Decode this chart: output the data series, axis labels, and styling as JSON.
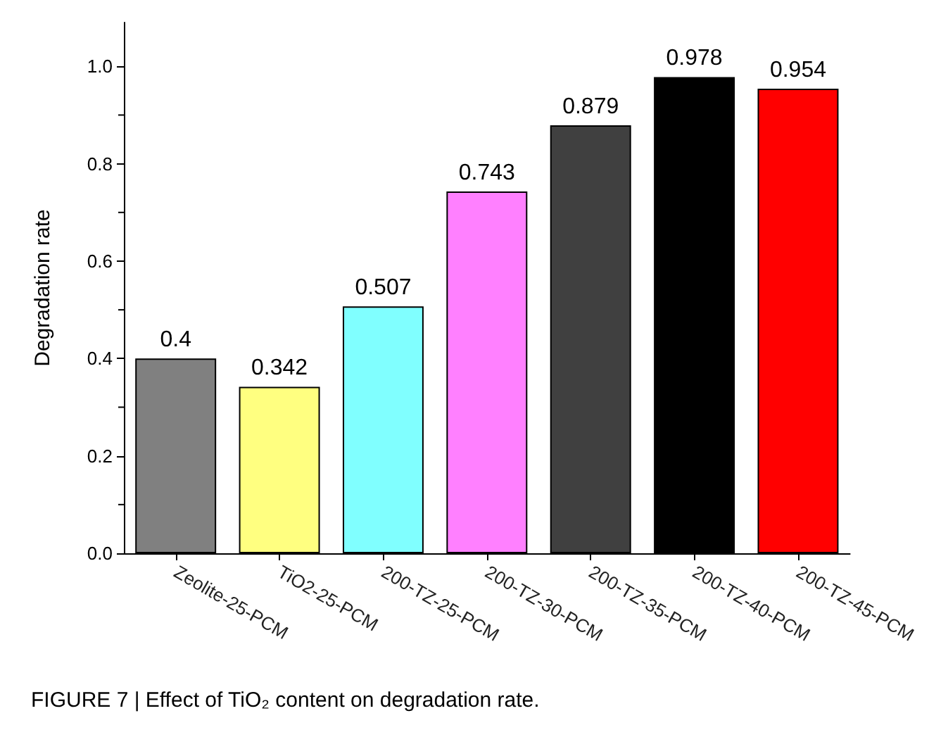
{
  "chart_data": {
    "type": "bar",
    "ylabel": "Degradation rate",
    "categories": [
      "Zeolite-25-PCM",
      "TiO2-25-PCM",
      "200-TZ-25-PCM",
      "200-TZ-30-PCM",
      "200-TZ-35-PCM",
      "200-TZ-40-PCM",
      "200-TZ-45-PCM"
    ],
    "values": [
      0.4,
      0.342,
      0.507,
      0.743,
      0.879,
      0.978,
      0.954
    ],
    "colors": [
      "#808080",
      "#ffff80",
      "#80ffff",
      "#ff80ff",
      "#404040",
      "#000000",
      "#ff0000"
    ],
    "data_labels": true,
    "ylim": [
      0,
      1.09
    ],
    "yticks": [
      {
        "value": 0,
        "label": "0.0"
      },
      {
        "value": 0.2,
        "label": "0.2"
      },
      {
        "value": 0.4,
        "label": "0.4"
      },
      {
        "value": 0.6,
        "label": "0.6"
      },
      {
        "value": 0.8,
        "label": "0.8"
      },
      {
        "value": 1,
        "label": "1.0"
      }
    ],
    "grid": false,
    "annotations": [
      "FIGURE 7 | Effect of TiO₂ content on degradation rate."
    ]
  }
}
